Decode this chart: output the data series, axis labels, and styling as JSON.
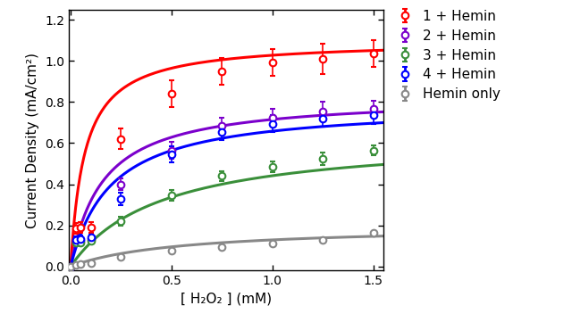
{
  "series": [
    {
      "label": "1 + Hemin",
      "color": "#FF0000",
      "x": [
        0.0,
        0.025,
        0.05,
        0.1,
        0.25,
        0.5,
        0.75,
        1.0,
        1.25,
        1.5
      ],
      "y": [
        0.0,
        0.185,
        0.19,
        0.19,
        0.62,
        0.84,
        0.95,
        0.995,
        1.01,
        1.035
      ],
      "yerr": [
        0.0,
        0.025,
        0.025,
        0.025,
        0.05,
        0.065,
        0.065,
        0.065,
        0.075,
        0.065
      ],
      "Vmax": 1.1,
      "Km": 0.07
    },
    {
      "label": "2 + Hemin",
      "color": "#7B00CC",
      "x": [
        0.0,
        0.025,
        0.05,
        0.1,
        0.25,
        0.5,
        0.75,
        1.0,
        1.25,
        1.5
      ],
      "y": [
        0.0,
        0.12,
        0.125,
        0.135,
        0.4,
        0.565,
        0.685,
        0.725,
        0.755,
        0.765
      ],
      "yerr": [
        0.0,
        0.015,
        0.015,
        0.015,
        0.03,
        0.04,
        0.04,
        0.04,
        0.045,
        0.04
      ],
      "Vmax": 0.83,
      "Km": 0.16
    },
    {
      "label": "3 + Hemin",
      "color": "#3A8F3A",
      "x": [
        0.0,
        0.025,
        0.05,
        0.1,
        0.25,
        0.5,
        0.75,
        1.0,
        1.25,
        1.5
      ],
      "y": [
        0.0,
        0.115,
        0.115,
        0.125,
        0.22,
        0.345,
        0.44,
        0.485,
        0.525,
        0.565
      ],
      "yerr": [
        0.0,
        0.012,
        0.012,
        0.012,
        0.02,
        0.025,
        0.025,
        0.025,
        0.03,
        0.025
      ],
      "Vmax": 0.64,
      "Km": 0.45
    },
    {
      "label": "4 + Hemin",
      "color": "#0000FF",
      "x": [
        0.0,
        0.025,
        0.05,
        0.1,
        0.25,
        0.5,
        0.75,
        1.0,
        1.25,
        1.5
      ],
      "y": [
        0.0,
        0.13,
        0.135,
        0.14,
        0.33,
        0.545,
        0.655,
        0.695,
        0.72,
        0.735
      ],
      "yerr": [
        0.0,
        0.015,
        0.015,
        0.015,
        0.03,
        0.04,
        0.04,
        0.04,
        0.04,
        0.04
      ],
      "Vmax": 0.79,
      "Km": 0.2
    },
    {
      "label": "Hemin only",
      "color": "#888888",
      "x": [
        0.0,
        0.025,
        0.05,
        0.1,
        0.25,
        0.5,
        0.75,
        1.0,
        1.25,
        1.5
      ],
      "y": [
        0.0,
        0.005,
        0.01,
        0.015,
        0.045,
        0.075,
        0.095,
        0.11,
        0.13,
        0.165
      ],
      "yerr": [
        0.0,
        0.003,
        0.003,
        0.003,
        0.004,
        0.004,
        0.004,
        0.004,
        0.004,
        0.004
      ],
      "Vmax": 0.2,
      "Km": 0.55
    }
  ],
  "xlabel": "[ H₂O₂ ] (mM)",
  "ylabel": "Current Density (mA/cm²)",
  "xlim": [
    -0.01,
    1.55
  ],
  "ylim": [
    -0.02,
    1.25
  ],
  "yticks": [
    0.0,
    0.2,
    0.4,
    0.6,
    0.8,
    1.0,
    1.2
  ],
  "xticks": [
    0.0,
    0.5,
    1.0,
    1.5
  ],
  "figsize": [
    6.4,
    3.61
  ],
  "dpi": 100,
  "legend_fontsize": 11,
  "axis_fontsize": 11,
  "tick_fontsize": 10
}
